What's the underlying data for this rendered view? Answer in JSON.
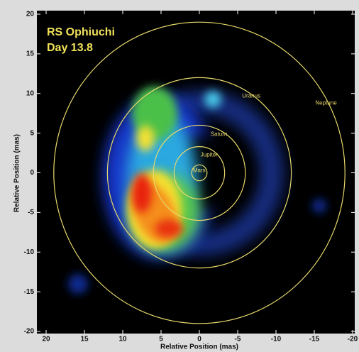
{
  "chart_data": {
    "type": "image",
    "title": "RS Ophiuchi",
    "subtitle": "Day 13.8",
    "x_label": "Relative Position (mas)",
    "y_label": "Relative Position (mas)",
    "xlim": [
      20,
      -20
    ],
    "ylim": [
      -20,
      20
    ],
    "xticks": [
      20,
      15,
      10,
      5,
      0,
      -5,
      -10,
      -15,
      -20
    ],
    "yticks": [
      -20,
      -15,
      -10,
      -5,
      0,
      5,
      10,
      15,
      20
    ],
    "orbit_color": "#e8d96a",
    "orbits": [
      {
        "name": "Mars",
        "radius": 1
      },
      {
        "name": "Jupiter",
        "radius": 3.3
      },
      {
        "name": "Saturn",
        "radius": 6
      },
      {
        "name": "Uranus",
        "radius": 12
      },
      {
        "name": "Neptune",
        "radius": 19
      }
    ]
  }
}
